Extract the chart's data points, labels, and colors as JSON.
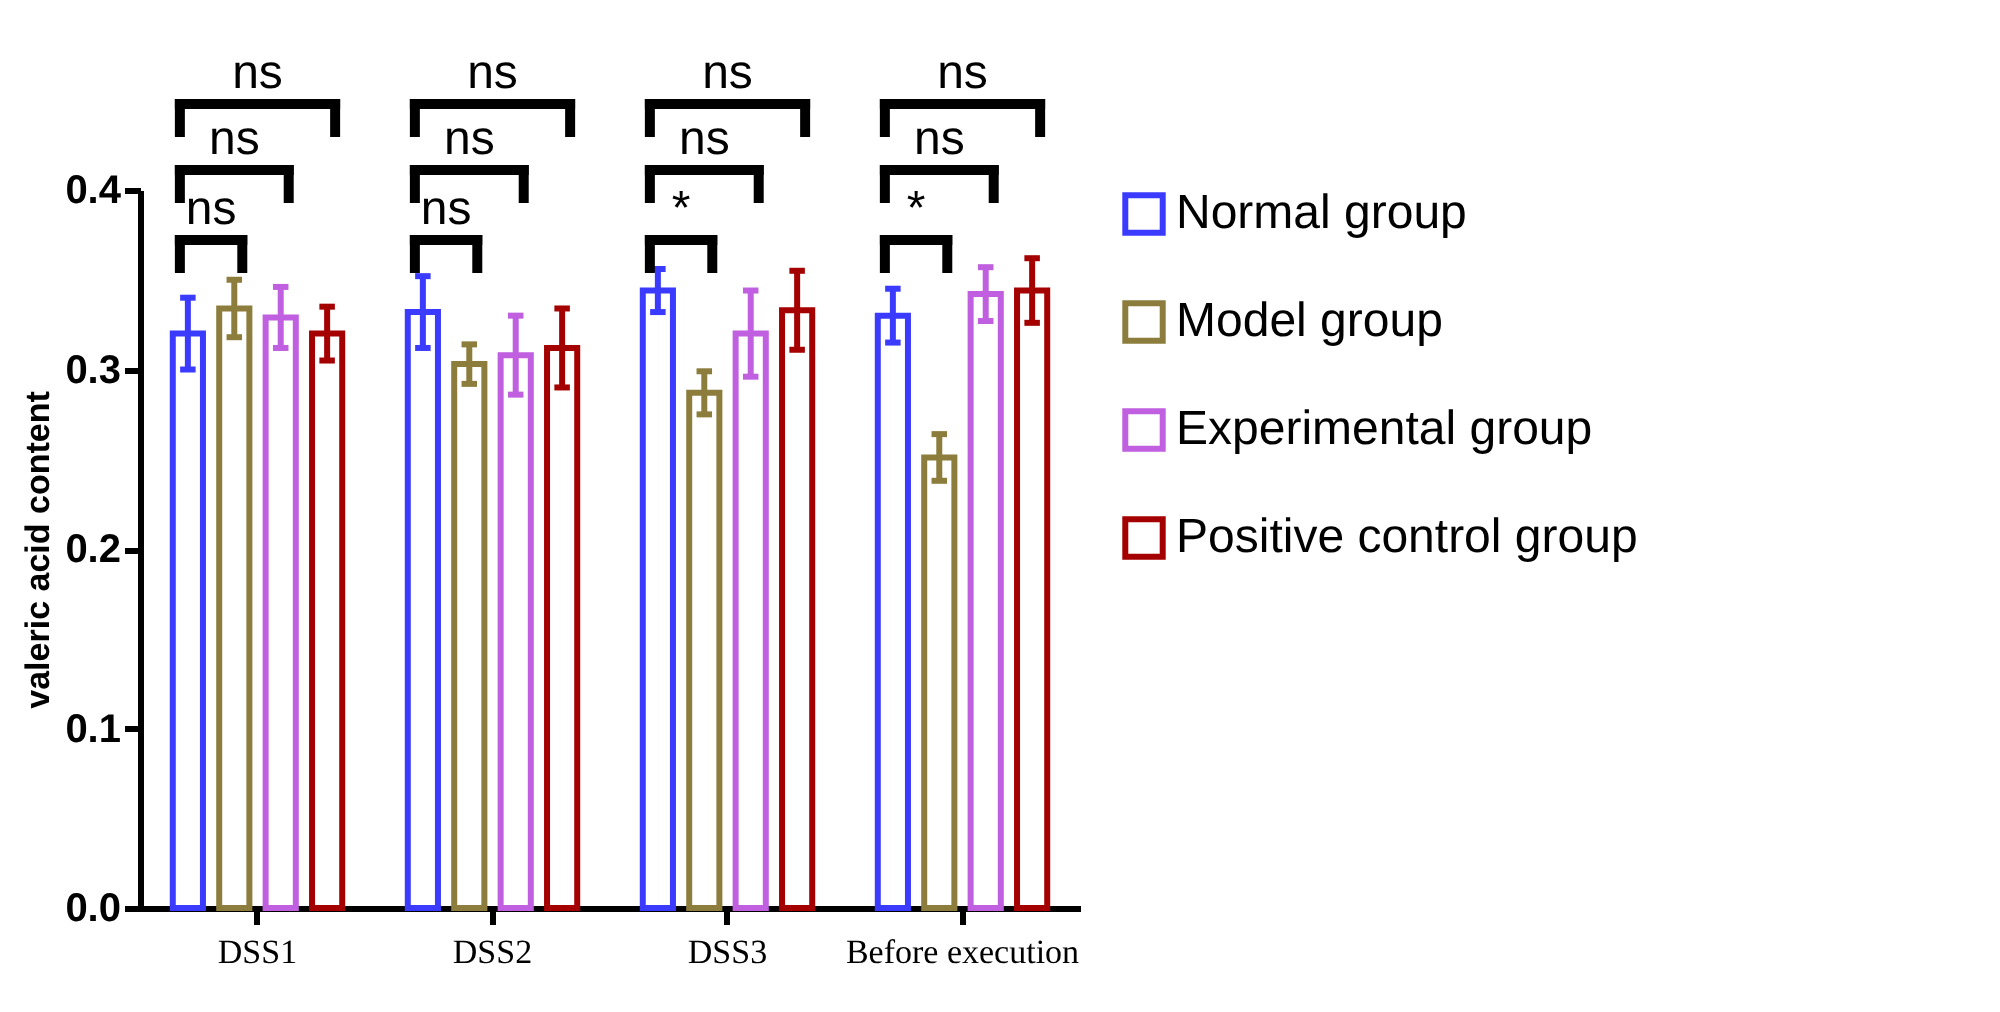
{
  "chart_data": {
    "type": "bar",
    "ylabel": "valeric acid content",
    "categories": [
      "DSS1",
      "DSS2",
      "DSS3",
      "Before execution"
    ],
    "series": [
      {
        "name": "Normal group",
        "color": "#3b3bff",
        "values": [
          0.32,
          0.332,
          0.344,
          0.33
        ],
        "errors": [
          0.02,
          0.02,
          0.012,
          0.015
        ]
      },
      {
        "name": "Model group",
        "color": "#8c7d3c",
        "values": [
          0.334,
          0.303,
          0.287,
          0.251
        ],
        "errors": [
          0.016,
          0.011,
          0.012,
          0.013
        ]
      },
      {
        "name": "Experimental group",
        "color": "#c05fdf",
        "values": [
          0.329,
          0.308,
          0.32,
          0.342
        ],
        "errors": [
          0.017,
          0.022,
          0.024,
          0.015
        ]
      },
      {
        "name": "Positive control group",
        "color": "#a50000",
        "values": [
          0.32,
          0.312,
          0.333,
          0.344
        ],
        "errors": [
          0.015,
          0.022,
          0.022,
          0.018
        ]
      }
    ],
    "ylim": [
      0,
      0.4
    ],
    "yticks": [
      {
        "value": 0,
        "label": "0.0"
      },
      0.1,
      0.2,
      0.3,
      0.4
    ],
    "grid": false,
    "legend": "right",
    "annotations": [
      "ns",
      "ns",
      "ns",
      "ns",
      "ns",
      "ns",
      "*",
      "ns",
      "ns",
      "*",
      "ns",
      "ns"
    ]
  }
}
